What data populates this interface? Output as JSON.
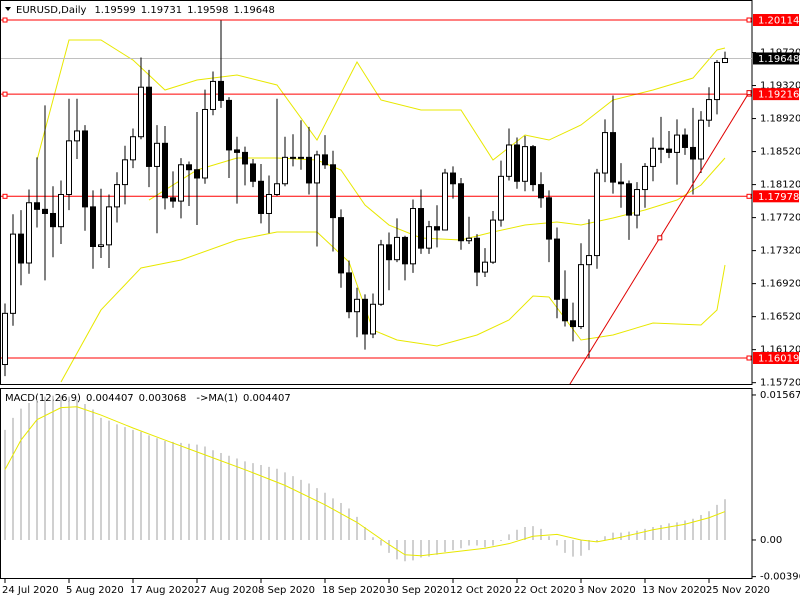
{
  "chart_data": [
    {
      "type": "candlestick",
      "title": "EURUSD,Daily",
      "categories": [
        "24 Jul 2020",
        null,
        null,
        null,
        null,
        null,
        null,
        null,
        "5 Aug 2020",
        null,
        null,
        null,
        null,
        null,
        null,
        null,
        "17 Aug 2020",
        null,
        null,
        null,
        null,
        null,
        null,
        null,
        "27 Aug 2020",
        null,
        null,
        null,
        null,
        null,
        null,
        null,
        "8 Sep 2020",
        null,
        null,
        null,
        null,
        null,
        null,
        null,
        "18 Sep 2020",
        null,
        null,
        null,
        null,
        null,
        null,
        null,
        "30 Sep 2020",
        null,
        null,
        null,
        null,
        null,
        null,
        null,
        "12 Oct 2020",
        null,
        null,
        null,
        null,
        null,
        null,
        null,
        "22 Oct 2020",
        null,
        null,
        null,
        null,
        null,
        null,
        null,
        "3 Nov 2020",
        null,
        null,
        null,
        null,
        null,
        null,
        null,
        "13 Nov 2020",
        null,
        null,
        null,
        null,
        null,
        null,
        null,
        "25 Nov 2020",
        null,
        null
      ],
      "open": [
        1.1594,
        1.1656,
        1.1752,
        1.1717,
        1.179,
        1.1782,
        1.1777,
        1.1761,
        1.18,
        1.1865,
        1.1877,
        1.1785,
        1.1737,
        1.1739,
        1.1785,
        1.1812,
        1.1842,
        1.187,
        1.193,
        1.1834,
        1.1862,
        1.1796,
        1.1792,
        1.1836,
        1.183,
        1.182,
        1.1903,
        1.1937,
        1.1914,
        1.1854,
        1.1851,
        1.1837,
        1.1816,
        1.1777,
        1.18,
        1.1813,
        1.1845,
        1.1845,
        1.1845,
        1.1814,
        1.1848,
        1.1836,
        1.1772,
        1.1705,
        1.1658,
        1.1673,
        1.1631,
        1.1667,
        1.1739,
        1.1721,
        1.1748,
        1.1716,
        1.1783,
        1.1735,
        1.1761,
        1.1757,
        1.1826,
        1.1813,
        1.1744,
        1.1747,
        1.1706,
        1.1718,
        1.1769,
        1.1822,
        1.186,
        1.1816,
        1.1858,
        1.1812,
        1.1796,
        1.1746,
        1.1673,
        1.1647,
        1.164,
        1.1715,
        1.1726,
        1.1826,
        1.1875,
        1.1815,
        1.1813,
        1.1775,
        1.1806,
        1.1834,
        1.1856,
        1.1855,
        1.1851,
        1.1872,
        1.1857,
        1.1843,
        1.189,
        1.1915,
        1.19599
      ],
      "high": [
        1.1668,
        1.1776,
        1.1781,
        1.1806,
        1.1845,
        1.1908,
        1.181,
        1.1817,
        1.1916,
        1.1916,
        1.1884,
        1.1805,
        1.1807,
        1.18,
        1.1827,
        1.1859,
        1.188,
        1.1966,
        1.1951,
        1.1884,
        1.1883,
        1.1828,
        1.1844,
        1.184,
        1.19,
        1.1927,
        1.1949,
        1.2011,
        1.1918,
        1.187,
        1.1858,
        1.1843,
        1.1837,
        1.1823,
        1.1916,
        1.187,
        1.1873,
        1.189,
        1.1882,
        1.1853,
        1.1872,
        1.1853,
        1.1782,
        1.172,
        1.1687,
        1.1679,
        1.168,
        1.1745,
        1.1754,
        1.1771,
        1.175,
        1.1794,
        1.1806,
        1.1768,
        1.1787,
        1.1831,
        1.1834,
        1.182,
        1.1773,
        1.1752,
        1.1735,
        1.178,
        1.1841,
        1.188,
        1.1869,
        1.1871,
        1.186,
        1.1827,
        1.1805,
        1.176,
        1.1708,
        1.1669,
        1.1741,
        1.177,
        1.1831,
        1.1891,
        1.192,
        1.1838,
        1.1817,
        1.1815,
        1.1838,
        1.1869,
        1.1894,
        1.1877,
        1.1891,
        1.188,
        1.1905,
        1.1901,
        1.193,
        1.1963,
        1.19731
      ],
      "low": [
        1.158,
        1.1641,
        1.169,
        1.1704,
        1.176,
        1.1696,
        1.1724,
        1.174,
        1.1781,
        1.1843,
        1.1756,
        1.171,
        1.1723,
        1.1711,
        1.1766,
        1.1788,
        1.1832,
        1.1867,
        1.1809,
        1.1753,
        1.1782,
        1.1784,
        1.1771,
        1.1786,
        1.1763,
        1.1813,
        1.1896,
        1.1905,
        1.182,
        1.1789,
        1.1811,
        1.1809,
        1.1765,
        1.1753,
        1.1798,
        1.181,
        1.1834,
        1.183,
        1.18,
        1.1737,
        1.1831,
        1.1731,
        1.1687,
        1.165,
        1.1627,
        1.1612,
        1.1626,
        1.1665,
        1.1684,
        1.1718,
        1.1696,
        1.1705,
        1.1728,
        1.1728,
        1.1736,
        1.1758,
        1.1795,
        1.1733,
        1.174,
        1.1689,
        1.17,
        1.1716,
        1.1761,
        1.1817,
        1.1807,
        1.1804,
        1.1804,
        1.1784,
        1.1718,
        1.165,
        1.164,
        1.1622,
        1.1637,
        1.1602,
        1.171,
        1.1815,
        1.1801,
        1.1784,
        1.1745,
        1.1759,
        1.1784,
        1.1816,
        1.1838,
        1.1844,
        1.1812,
        1.1848,
        1.18,
        1.1826,
        1.1882,
        1.1897,
        1.19598
      ],
      "close": [
        1.1656,
        1.1752,
        1.1717,
        1.179,
        1.1782,
        1.1777,
        1.1761,
        1.18,
        1.1865,
        1.1877,
        1.1785,
        1.1737,
        1.1739,
        1.1785,
        1.1812,
        1.1842,
        1.187,
        1.193,
        1.1834,
        1.1862,
        1.1796,
        1.1792,
        1.1836,
        1.183,
        1.182,
        1.1903,
        1.1937,
        1.1914,
        1.1854,
        1.1851,
        1.1837,
        1.1816,
        1.1777,
        1.18,
        1.1813,
        1.1845,
        1.1845,
        1.1845,
        1.1814,
        1.1848,
        1.1836,
        1.1772,
        1.1705,
        1.1658,
        1.1673,
        1.1631,
        1.1667,
        1.1739,
        1.1721,
        1.1748,
        1.1716,
        1.1783,
        1.1735,
        1.1761,
        1.1757,
        1.1826,
        1.1813,
        1.1744,
        1.1747,
        1.1706,
        1.1718,
        1.1769,
        1.1822,
        1.186,
        1.1816,
        1.1858,
        1.1812,
        1.1796,
        1.1746,
        1.1673,
        1.1647,
        1.164,
        1.1715,
        1.1726,
        1.1826,
        1.1875,
        1.1815,
        1.1813,
        1.1775,
        1.1806,
        1.1834,
        1.1856,
        1.1855,
        1.1851,
        1.1872,
        1.1857,
        1.1843,
        1.189,
        1.1915,
        1.196,
        1.19648
      ],
      "bands": [
        {
          "color": "#e8e800",
          "x": [
            4,
            8,
            12,
            16,
            20,
            24,
            29,
            34,
            39,
            44,
            47,
            52,
            57,
            61,
            65,
            68,
            72,
            76,
            81,
            86,
            89,
            90
          ],
          "values": [
            1.18418,
            1.19872,
            1.19872,
            1.19629,
            1.19266,
            1.19387,
            1.19448,
            1.19327,
            1.1866,
            1.19605,
            1.19145,
            1.19024,
            1.19024,
            1.18418,
            1.18721,
            1.1866,
            1.18842,
            1.19145,
            1.19266,
            1.19411,
            1.19751,
            1.19775
          ]
        },
        {
          "color": "#e8e800",
          "x": [
            18,
            24,
            29,
            34,
            39,
            42,
            45,
            48,
            52,
            57,
            61,
            65,
            69,
            72,
            76,
            80,
            84,
            87,
            90
          ],
          "values": [
            1.17933,
            1.18297,
            1.18442,
            1.18442,
            1.18418,
            1.18297,
            1.17873,
            1.1763,
            1.17473,
            1.17449,
            1.17546,
            1.1763,
            1.17667,
            1.1763,
            1.17715,
            1.17812,
            1.17933,
            1.18115,
            1.18442
          ]
        },
        {
          "color": "#e8e800",
          "x": [
            7,
            12,
            17,
            22,
            29,
            34,
            39,
            43,
            46,
            49,
            54,
            59,
            63,
            66,
            68,
            72,
            76,
            81,
            87,
            89,
            90
          ],
          "values": [
            1.15728,
            1.16601,
            1.1711,
            1.17206,
            1.17449,
            1.17546,
            1.17546,
            1.17182,
            1.16358,
            1.16237,
            1.16165,
            1.16298,
            1.1648,
            1.1677,
            1.16758,
            1.16237,
            1.16298,
            1.16443,
            1.16419,
            1.16601,
            1.17146
          ]
        }
      ],
      "levels": [
        {
          "value": 1.20114,
          "color": "#ff0000"
        },
        {
          "value": 1.19216,
          "color": "#ff0000"
        },
        {
          "value": 1.17978,
          "color": "#ff0000"
        },
        {
          "value": 1.16019,
          "color": "#ff0000"
        }
      ],
      "trendline": {
        "color": "#e00000",
        "x": [
          70.6,
          93.1
        ],
        "values": [
          1.157,
          1.1925
        ]
      },
      "price_line_color": "#c0c0c0",
      "ylim": [
        1.15704,
        1.20308
      ],
      "yticks": [
        {
          "value": 1.1972,
          "label": "1.19720"
        },
        {
          "value": 1.1932,
          "label": "1.19320"
        },
        {
          "value": 1.1892,
          "label": "1.18920"
        },
        {
          "value": 1.1852,
          "label": "1.18520"
        },
        {
          "value": 1.1812,
          "label": "1.18120"
        },
        {
          "value": 1.1772,
          "label": "1.17720"
        },
        {
          "value": 1.1732,
          "label": "1.17320"
        },
        {
          "value": 1.1692,
          "label": "1.16920"
        },
        {
          "value": 1.1652,
          "label": "1.16520"
        },
        {
          "value": 1.1612,
          "label": "1.16120"
        },
        {
          "value": 1.1572,
          "label": "1.15720"
        }
      ]
    },
    {
      "type": "macd",
      "title": "MACD(12,26,9)",
      "annotation": "->MA(1)",
      "color": "#a0a0a0",
      "values": [
        0.0119,
        0.0132,
        0.0142,
        0.0148,
        0.0152,
        0.0155,
        0.0156,
        0.0156,
        0.0155,
        0.0152,
        0.0147,
        0.0141,
        0.0132,
        0.0129,
        0.0125,
        0.0122,
        0.0119,
        0.0117,
        0.0113,
        0.011,
        0.0107,
        0.0106,
        0.0105,
        0.0104,
        0.0103,
        0.0101,
        0.0097,
        0.0094,
        0.0091,
        0.0088,
        0.0085,
        0.0083,
        0.0081,
        0.0079,
        0.0077,
        0.0073,
        0.0069,
        0.0065,
        0.0061,
        0.0056,
        0.0051,
        0.0045,
        0.004,
        0.0034,
        0.0025,
        0.0014,
        0.0003,
        -0.0006,
        -0.0014,
        -0.0021,
        -0.0023,
        -0.0022,
        -0.0019,
        -0.0018,
        -0.0016,
        -0.0013,
        -0.0011,
        -0.0009,
        -0.0006,
        -0.0006,
        -0.0008,
        -0.0006,
        -0.0001,
        0.0006,
        0.0011,
        0.0014,
        0.0015,
        0.0012,
        0.0004,
        -0.0006,
        -0.0014,
        -0.0018,
        -0.0017,
        -0.0011,
        -0.0002,
        0.0004,
        0.0008,
        0.0008,
        0.0009,
        0.001,
        0.0012,
        0.0014,
        0.0016,
        0.0018,
        0.0019,
        0.0021,
        0.0023,
        0.0027,
        0.0031,
        0.0038,
        0.004407
      ],
      "signal": {
        "color": "#e8e800",
        "x": [
          0,
          2,
          4,
          7,
          9,
          12,
          16,
          20,
          25,
          30,
          35,
          40,
          44,
          48,
          50,
          52,
          56,
          60,
          63,
          66,
          69,
          72,
          74,
          77,
          81,
          85,
          88,
          90
        ],
        "values": [
          0.0076,
          0.0108,
          0.013,
          0.0143,
          0.0144,
          0.0135,
          0.0121,
          0.0108,
          0.0092,
          0.0076,
          0.0059,
          0.0038,
          0.0019,
          -0.0005,
          -0.0016,
          -0.0017,
          -0.0013,
          -0.0009,
          -0.0004,
          0.0004,
          0.0006,
          0.0,
          -0.0002,
          0.0003,
          0.0011,
          0.0017,
          0.0024,
          0.003068
        ]
      },
      "ylim": [
        -0.00411,
        0.01621
      ],
      "yticks": [
        0.015673,
        {
          "value": 0,
          "label": "0.00"
        },
        -0.003962
      ]
    }
  ]
}
